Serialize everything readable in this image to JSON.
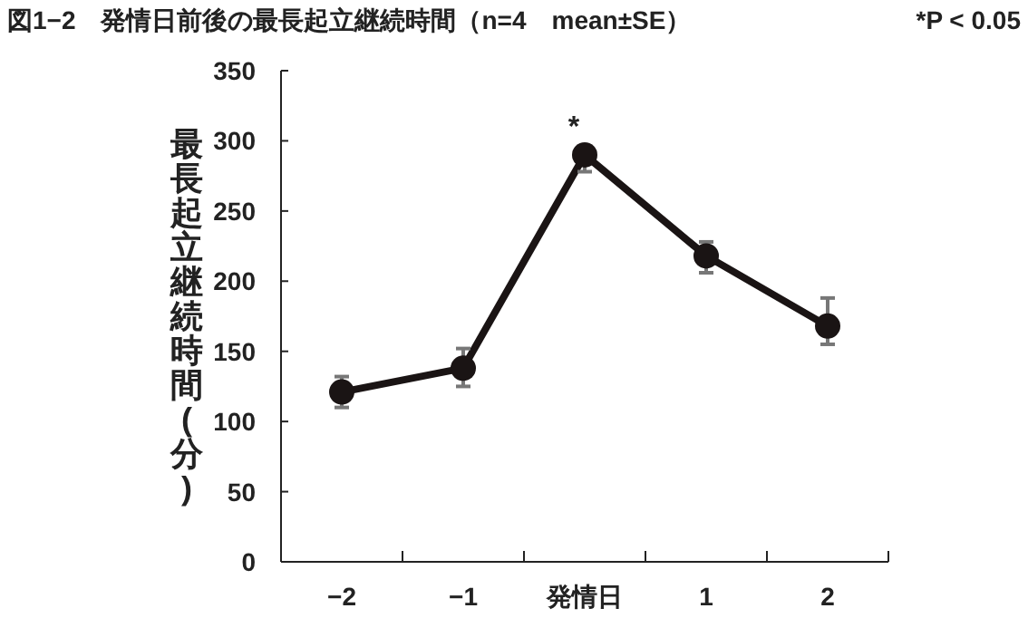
{
  "chart_data": {
    "type": "line",
    "title": "図1−2　発情日前後の最長起立継続時間（n=4　mean±SE）",
    "annotations": [
      "*P < 0.05",
      {
        "text": "*",
        "x": "発情日",
        "y": 296
      }
    ],
    "ylabel": "最長起立継続時間(分)",
    "categories": [
      "−2",
      "−1",
      "発情日",
      "1",
      "2"
    ],
    "series": [
      {
        "color": "#1a1414",
        "values": [
          121,
          138,
          290,
          218,
          168
        ],
        "errors": [
          [
            110,
            132
          ],
          [
            125,
            152
          ],
          [
            278,
            296
          ],
          [
            206,
            228
          ],
          [
            155,
            188
          ]
        ]
      }
    ],
    "ylim": [
      0,
      350
    ],
    "yticks": [
      0,
      50,
      100,
      150,
      200,
      250,
      300,
      350
    ],
    "marker": "circle",
    "line_style": "solid",
    "grid": false
  }
}
